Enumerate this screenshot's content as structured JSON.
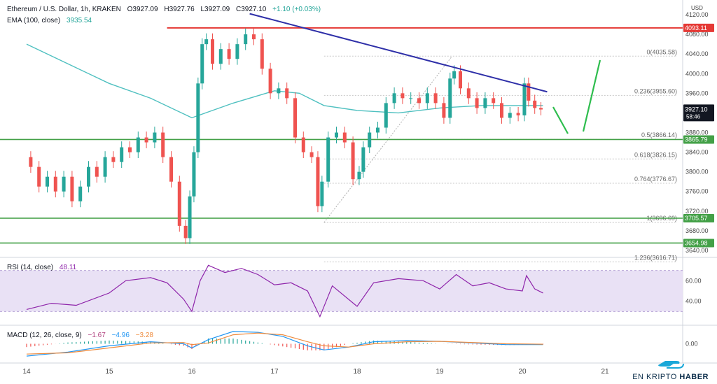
{
  "header": {
    "symbol": "Ethereum / U.S. Dollar, 1h, KRAKEN",
    "open": "O3927.09",
    "high": "H3927.76",
    "low": "L3927.09",
    "close": "C3927.10",
    "change": "+1.10 (+0.03%)",
    "ema_label": "EMA (100, close)",
    "ema_value": "3935.54"
  },
  "rsi_header": {
    "label": "RSI (14, close)",
    "value": "48.11"
  },
  "macd_header": {
    "label": "MACD (12, 26, close, 9)",
    "v1": "−1.67",
    "v2": "−4.96",
    "v3": "−3.28"
  },
  "currency": "USD",
  "logo": {
    "text_a": "EN KRIPTO ",
    "text_b": "HABER"
  },
  "colors": {
    "up": "#26a69a",
    "down": "#ef5350",
    "ema": "#4fc0c0",
    "trendline": "#2e2fa8",
    "resistance": "#e53935",
    "support": "#43a047",
    "fib": "#9a9a9a",
    "rsi": "#8e24aa",
    "rsi_band": "#e9e1f5",
    "macd": "#2196f3",
    "signal": "#ef8b3d",
    "arrow": "#2ebd4e",
    "price_label": "#131722"
  },
  "chart_data": {
    "type": "candlestick",
    "x_ticks": [
      "14",
      "15",
      "16",
      "17",
      "18",
      "19",
      "20",
      "21"
    ],
    "price_axis_ticks": [
      "4120.00",
      "4080.00",
      "4040.00",
      "4000.00",
      "3960.00",
      "3920.00",
      "3880.00",
      "3840.00",
      "3800.00",
      "3760.00",
      "3720.00",
      "3680.00",
      "3640.00"
    ],
    "ylim": [
      3630,
      4130
    ],
    "horizontal_levels": [
      {
        "label": "4093.11",
        "value": 4093.11,
        "kind": "resistance"
      },
      {
        "label": "3865.79",
        "value": 3865.79,
        "kind": "support"
      },
      {
        "label": "3705.57",
        "value": 3705.57,
        "kind": "support"
      },
      {
        "label": "3654.98",
        "value": 3654.98,
        "kind": "support"
      }
    ],
    "current_price": {
      "label": "3927.10",
      "countdown": "58:46",
      "value": 3927.1
    },
    "fib_levels": [
      {
        "label": "0(4035.58)",
        "value": 4035.58
      },
      {
        "label": "0.236(3955.60)",
        "value": 3955.6
      },
      {
        "label": "0.5(3866.14)",
        "value": 3866.14
      },
      {
        "label": "0.618(3826.15)",
        "value": 3826.15
      },
      {
        "label": "0.764(3776.67)",
        "value": 3776.67
      },
      {
        "label": "1(3696.69)",
        "value": 3696.69
      },
      {
        "label": "1.236(3616.71)",
        "value": 3616.71
      }
    ],
    "trendline": {
      "from": [
        2.7,
        4122
      ],
      "to": [
        6.3,
        3963
      ]
    },
    "close_path": [
      [
        0.0,
        3830
      ],
      [
        0.1,
        3810
      ],
      [
        0.2,
        3770
      ],
      [
        0.3,
        3790
      ],
      [
        0.4,
        3760
      ],
      [
        0.5,
        3790
      ],
      [
        0.6,
        3740
      ],
      [
        0.7,
        3770
      ],
      [
        0.8,
        3810
      ],
      [
        0.9,
        3790
      ],
      [
        1.0,
        3830
      ],
      [
        1.1,
        3820
      ],
      [
        1.2,
        3850
      ],
      [
        1.3,
        3840
      ],
      [
        1.4,
        3870
      ],
      [
        1.5,
        3860
      ],
      [
        1.6,
        3880
      ],
      [
        1.7,
        3830
      ],
      [
        1.8,
        3780
      ],
      [
        1.9,
        3690
      ],
      [
        1.95,
        3665
      ],
      [
        2.0,
        3750
      ],
      [
        2.05,
        3840
      ],
      [
        2.1,
        3980
      ],
      [
        2.15,
        4060
      ],
      [
        2.2,
        4070
      ],
      [
        2.3,
        4020
      ],
      [
        2.4,
        4050
      ],
      [
        2.5,
        4030
      ],
      [
        2.6,
        4060
      ],
      [
        2.7,
        4080
      ],
      [
        2.8,
        4070
      ],
      [
        2.9,
        4010
      ],
      [
        3.0,
        3960
      ],
      [
        3.1,
        3970
      ],
      [
        3.2,
        3950
      ],
      [
        3.3,
        3870
      ],
      [
        3.4,
        3840
      ],
      [
        3.5,
        3830
      ],
      [
        3.55,
        3730
      ],
      [
        3.6,
        3780
      ],
      [
        3.7,
        3870
      ],
      [
        3.8,
        3880
      ],
      [
        3.9,
        3860
      ],
      [
        4.0,
        3785
      ],
      [
        4.05,
        3800
      ],
      [
        4.1,
        3850
      ],
      [
        4.2,
        3880
      ],
      [
        4.3,
        3890
      ],
      [
        4.4,
        3940
      ],
      [
        4.5,
        3960
      ],
      [
        4.6,
        3950
      ],
      [
        4.7,
        3950
      ],
      [
        4.8,
        3940
      ],
      [
        4.9,
        3960
      ],
      [
        5.0,
        3940
      ],
      [
        5.1,
        3910
      ],
      [
        5.15,
        3990
      ],
      [
        5.2,
        4005
      ],
      [
        5.3,
        3970
      ],
      [
        5.4,
        3950
      ],
      [
        5.5,
        3930
      ],
      [
        5.6,
        3950
      ],
      [
        5.7,
        3940
      ],
      [
        5.8,
        3910
      ],
      [
        5.9,
        3920
      ],
      [
        6.0,
        3915
      ],
      [
        6.05,
        3980
      ],
      [
        6.1,
        3945
      ],
      [
        6.2,
        3930
      ],
      [
        6.25,
        3927
      ]
    ],
    "ema_path": [
      [
        0.0,
        4060
      ],
      [
        0.5,
        4020
      ],
      [
        1.0,
        3980
      ],
      [
        1.5,
        3950
      ],
      [
        2.0,
        3910
      ],
      [
        2.5,
        3940
      ],
      [
        3.0,
        3965
      ],
      [
        3.3,
        3960
      ],
      [
        3.6,
        3935
      ],
      [
        4.0,
        3925
      ],
      [
        4.5,
        3920
      ],
      [
        5.0,
        3930
      ],
      [
        5.5,
        3935
      ],
      [
        6.0,
        3935
      ],
      [
        6.25,
        3935
      ]
    ],
    "rsi": {
      "ticks": [
        "60.00",
        "40.00"
      ],
      "band": [
        30,
        70
      ],
      "ylim": [
        20,
        80
      ],
      "path": [
        [
          0.0,
          32
        ],
        [
          0.3,
          38
        ],
        [
          0.6,
          36
        ],
        [
          1.0,
          48
        ],
        [
          1.2,
          60
        ],
        [
          1.5,
          63
        ],
        [
          1.7,
          58
        ],
        [
          1.9,
          42
        ],
        [
          2.0,
          30
        ],
        [
          2.1,
          60
        ],
        [
          2.2,
          75
        ],
        [
          2.4,
          68
        ],
        [
          2.6,
          72
        ],
        [
          2.8,
          66
        ],
        [
          3.0,
          56
        ],
        [
          3.2,
          58
        ],
        [
          3.4,
          50
        ],
        [
          3.55,
          25
        ],
        [
          3.7,
          55
        ],
        [
          4.0,
          35
        ],
        [
          4.2,
          58
        ],
        [
          4.5,
          62
        ],
        [
          4.8,
          60
        ],
        [
          5.0,
          52
        ],
        [
          5.2,
          66
        ],
        [
          5.4,
          55
        ],
        [
          5.6,
          58
        ],
        [
          5.8,
          52
        ],
        [
          6.0,
          50
        ],
        [
          6.05,
          65
        ],
        [
          6.15,
          52
        ],
        [
          6.25,
          48
        ]
      ]
    },
    "macd": {
      "ticks": [
        "0.00"
      ],
      "ylim": [
        -40,
        40
      ],
      "macd_path": [
        [
          0.0,
          -30
        ],
        [
          0.5,
          -20
        ],
        [
          1.0,
          -5
        ],
        [
          1.5,
          5
        ],
        [
          1.9,
          0
        ],
        [
          2.0,
          -10
        ],
        [
          2.2,
          10
        ],
        [
          2.5,
          30
        ],
        [
          2.8,
          28
        ],
        [
          3.1,
          18
        ],
        [
          3.4,
          -5
        ],
        [
          3.6,
          -15
        ],
        [
          3.9,
          -8
        ],
        [
          4.2,
          5
        ],
        [
          4.6,
          8
        ],
        [
          5.0,
          6
        ],
        [
          5.4,
          2
        ],
        [
          5.8,
          -2
        ],
        [
          6.25,
          -2
        ]
      ],
      "signal_path": [
        [
          0.0,
          -25
        ],
        [
          0.5,
          -22
        ],
        [
          1.0,
          -10
        ],
        [
          1.5,
          2
        ],
        [
          1.9,
          3
        ],
        [
          2.0,
          -2
        ],
        [
          2.2,
          2
        ],
        [
          2.5,
          22
        ],
        [
          2.8,
          26
        ],
        [
          3.1,
          22
        ],
        [
          3.4,
          5
        ],
        [
          3.6,
          -5
        ],
        [
          3.9,
          -8
        ],
        [
          4.2,
          0
        ],
        [
          4.6,
          5
        ],
        [
          5.0,
          6
        ],
        [
          5.4,
          3
        ],
        [
          5.8,
          0
        ],
        [
          6.25,
          -1
        ]
      ]
    }
  }
}
